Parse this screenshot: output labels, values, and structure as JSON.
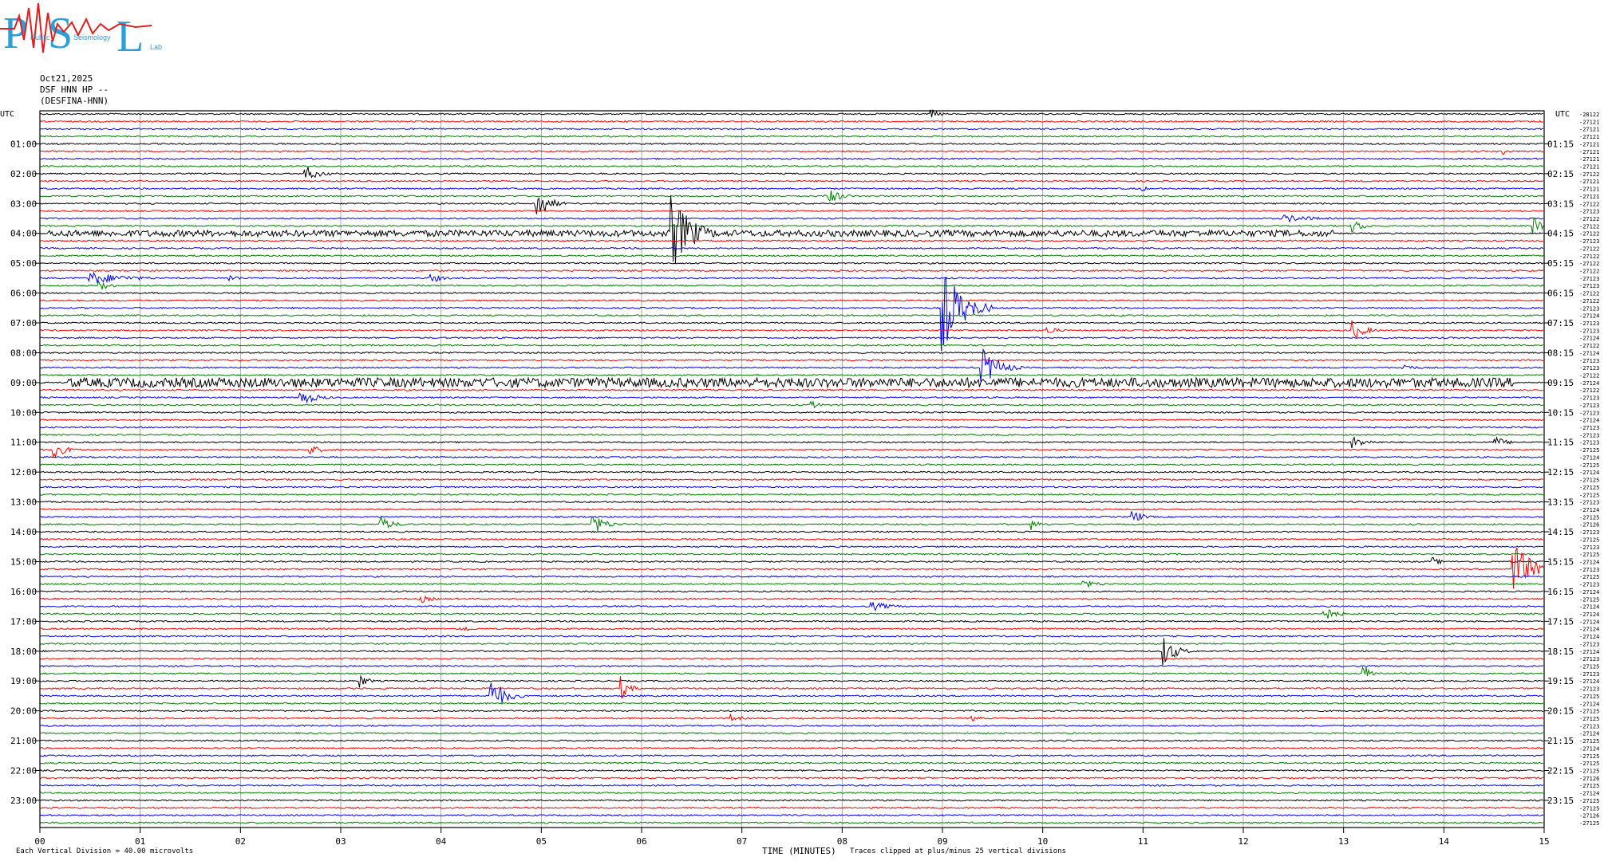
{
  "header": {
    "logo_letters": [
      "P",
      "S",
      "L"
    ],
    "logo_words": [
      "Public",
      "Seismology",
      "Lab"
    ],
    "date": "Oct21,2025",
    "channel": "DSF HNN HP --",
    "station": "(DESFINA-HNN)"
  },
  "axis": {
    "utc_left": "UTC",
    "utc_right": "UTC",
    "xlabel": "TIME (MINUTES)",
    "left_hours": [
      "01:00",
      "02:00",
      "03:00",
      "04:00",
      "05:00",
      "06:00",
      "07:00",
      "08:00",
      "09:00",
      "10:00",
      "11:00",
      "12:00",
      "13:00",
      "14:00",
      "15:00",
      "16:00",
      "17:00",
      "18:00",
      "19:00",
      "20:00",
      "21:00",
      "22:00",
      "23:00"
    ],
    "right_hours": [
      "01:15",
      "02:15",
      "03:15",
      "04:15",
      "05:15",
      "06:15",
      "07:15",
      "08:15",
      "09:15",
      "10:15",
      "11:15",
      "12:15",
      "13:15",
      "14:15",
      "15:15",
      "16:15",
      "17:15",
      "18:15",
      "19:15",
      "20:15",
      "21:15",
      "22:15",
      "23:15"
    ],
    "minute_ticks": [
      "00",
      "01",
      "02",
      "03",
      "04",
      "05",
      "06",
      "07",
      "08",
      "09",
      "10",
      "11",
      "12",
      "13",
      "14",
      "15"
    ]
  },
  "footer": {
    "scale_note": "Each Vertical Division =   40.00 microvolts",
    "clip_note": "Traces clipped at plus/minus 25 vertical divisions"
  },
  "chart_data": {
    "type": "line",
    "title": "",
    "xlabel": "TIME (MINUTES)",
    "xlim": [
      0,
      15
    ],
    "trace_count": 96,
    "trace_minutes": 15,
    "trace_colors": [
      "#000000",
      "#ff0000",
      "#0000ff",
      "#008000"
    ],
    "right_offsets": [
      -28122,
      -27121,
      -27121,
      -27121,
      -27121,
      -27121,
      -27121,
      -27121,
      -27122,
      -27121,
      -27121,
      -27121,
      -27122,
      -27123,
      -27122,
      -27122,
      -27122,
      -27123,
      -27122,
      -27122,
      -27122,
      -27122,
      -27123,
      -27123,
      -27122,
      -27122,
      -27123,
      -27124,
      -27123,
      -27123,
      -27124,
      -27122,
      -27124,
      -27123,
      -27123,
      -27122,
      -27124,
      -27122,
      -27123,
      -27123,
      -27123,
      -27124,
      -27123,
      -27123,
      -27123,
      -27125,
      -27124,
      -27125,
      -27124,
      -27125,
      -27125,
      -27125,
      -27123,
      -27124,
      -27125,
      -27126,
      -27123,
      -27125,
      -27123,
      -27125,
      -27124,
      -27123,
      -27125,
      -27123,
      -27124,
      -27125,
      -27124,
      -27124,
      -27124,
      -27124,
      -27124,
      -27123,
      -27124,
      -27123,
      -27125,
      -27123,
      -27124,
      -27123,
      -27125,
      -27124,
      -27125,
      -27125,
      -27123,
      -27124,
      -27125,
      -27124,
      -27125,
      -27125,
      -27125,
      -27126,
      -27125,
      -27124,
      -27125,
      -27125,
      -27126,
      -27125
    ],
    "events": [
      {
        "trace": 0,
        "minute": 8.9,
        "amp": 5,
        "len": 0.25
      },
      {
        "trace": 5,
        "minute": 14.6,
        "amp": 4,
        "len": 0.15
      },
      {
        "trace": 8,
        "minute": 2.65,
        "amp": 10,
        "len": 0.35
      },
      {
        "trace": 10,
        "minute": 11.0,
        "amp": 4,
        "len": 0.1
      },
      {
        "trace": 12,
        "minute": 4.95,
        "amp": 22,
        "len": 0.3
      },
      {
        "trace": 11,
        "minute": 7.85,
        "amp": 12,
        "len": 0.3
      },
      {
        "trace": 16,
        "minute": 6.3,
        "amp": 50,
        "len": 0.5
      },
      {
        "trace": 16,
        "minute": 0.1,
        "amp": 4,
        "len": 12.8
      },
      {
        "trace": 15,
        "minute": 13.1,
        "amp": 8,
        "len": 0.3
      },
      {
        "trace": 15,
        "minute": 14.9,
        "amp": 12,
        "len": 0.2
      },
      {
        "trace": 14,
        "minute": 12.4,
        "amp": 5,
        "len": 0.9
      },
      {
        "trace": 22,
        "minute": 0.5,
        "amp": 8,
        "len": 1.0
      },
      {
        "trace": 22,
        "minute": 1.9,
        "amp": 4,
        "len": 0.3
      },
      {
        "trace": 22,
        "minute": 3.9,
        "amp": 6,
        "len": 0.3
      },
      {
        "trace": 23,
        "minute": 0.6,
        "amp": 6,
        "len": 0.3
      },
      {
        "trace": 26,
        "minute": 9.0,
        "amp": 55,
        "len": 0.5
      },
      {
        "trace": 29,
        "minute": 10.05,
        "amp": 6,
        "len": 0.25
      },
      {
        "trace": 29,
        "minute": 13.1,
        "amp": 12,
        "len": 0.3
      },
      {
        "trace": 34,
        "minute": 9.4,
        "amp": 25,
        "len": 0.4
      },
      {
        "trace": 34,
        "minute": 13.6,
        "amp": 5,
        "len": 0.3
      },
      {
        "trace": 36,
        "minute": 0.3,
        "amp": 6,
        "len": 14.4
      },
      {
        "trace": 38,
        "minute": 2.6,
        "amp": 10,
        "len": 0.4
      },
      {
        "trace": 39,
        "minute": 7.7,
        "amp": 5,
        "len": 0.2
      },
      {
        "trace": 45,
        "minute": 0.15,
        "amp": 10,
        "len": 0.3
      },
      {
        "trace": 45,
        "minute": 2.7,
        "amp": 6,
        "len": 0.3
      },
      {
        "trace": 44,
        "minute": 13.1,
        "amp": 7,
        "len": 0.4
      },
      {
        "trace": 44,
        "minute": 14.5,
        "amp": 8,
        "len": 0.3
      },
      {
        "trace": 55,
        "minute": 3.4,
        "amp": 10,
        "len": 0.3
      },
      {
        "trace": 55,
        "minute": 5.5,
        "amp": 14,
        "len": 0.35
      },
      {
        "trace": 55,
        "minute": 9.9,
        "amp": 6,
        "len": 0.2
      },
      {
        "trace": 54,
        "minute": 10.9,
        "amp": 9,
        "len": 0.25
      },
      {
        "trace": 61,
        "minute": 14.7,
        "amp": 38,
        "len": 0.4
      },
      {
        "trace": 60,
        "minute": 13.9,
        "amp": 5,
        "len": 0.2
      },
      {
        "trace": 65,
        "minute": 3.8,
        "amp": 5,
        "len": 0.3
      },
      {
        "trace": 63,
        "minute": 10.4,
        "amp": 5,
        "len": 0.5
      },
      {
        "trace": 66,
        "minute": 8.3,
        "amp": 6,
        "len": 0.5
      },
      {
        "trace": 67,
        "minute": 12.8,
        "amp": 10,
        "len": 0.3
      },
      {
        "trace": 69,
        "minute": 4.2,
        "amp": 5,
        "len": 0.25
      },
      {
        "trace": 72,
        "minute": 11.2,
        "amp": 20,
        "len": 0.3
      },
      {
        "trace": 75,
        "minute": 13.2,
        "amp": 12,
        "len": 0.2
      },
      {
        "trace": 76,
        "minute": 3.2,
        "amp": 8,
        "len": 0.2
      },
      {
        "trace": 78,
        "minute": 4.5,
        "amp": 22,
        "len": 0.35
      },
      {
        "trace": 77,
        "minute": 5.8,
        "amp": 14,
        "len": 0.2
      },
      {
        "trace": 81,
        "minute": 6.9,
        "amp": 5,
        "len": 0.25
      },
      {
        "trace": 81,
        "minute": 9.3,
        "amp": 4,
        "len": 0.25
      }
    ]
  }
}
